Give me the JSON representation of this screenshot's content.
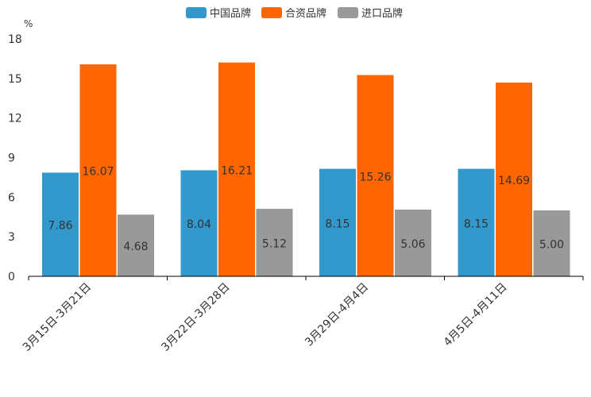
{
  "chart_data": {
    "type": "bar",
    "title": "",
    "xlabel": "",
    "ylabel": "%",
    "ylim": [
      0,
      18
    ],
    "yticks": [
      "0",
      "3",
      "6",
      "9",
      "12",
      "15",
      "18"
    ],
    "categories": [
      "3月15日-3月21日",
      "3月22日-3月28日",
      "3月29日-4月4日",
      "4月5日-4月11日"
    ],
    "legend_position": "top-center",
    "series": [
      {
        "name": "中国品牌",
        "color": "#3399cc",
        "values": [
          7.86,
          8.04,
          8.15,
          8.15
        ],
        "labels": [
          "7.86",
          "8.04",
          "8.15",
          "8.15"
        ]
      },
      {
        "name": "合资品牌",
        "color": "#ff6600",
        "values": [
          16.07,
          16.21,
          15.26,
          14.69
        ],
        "labels": [
          "16.07",
          "16.21",
          "15.26",
          "14.69"
        ]
      },
      {
        "name": "进口品牌",
        "color": "#999999",
        "values": [
          4.68,
          5.12,
          5.06,
          5.0
        ],
        "labels": [
          "4.68",
          "5.12",
          "5.06",
          "5.00"
        ]
      }
    ]
  }
}
